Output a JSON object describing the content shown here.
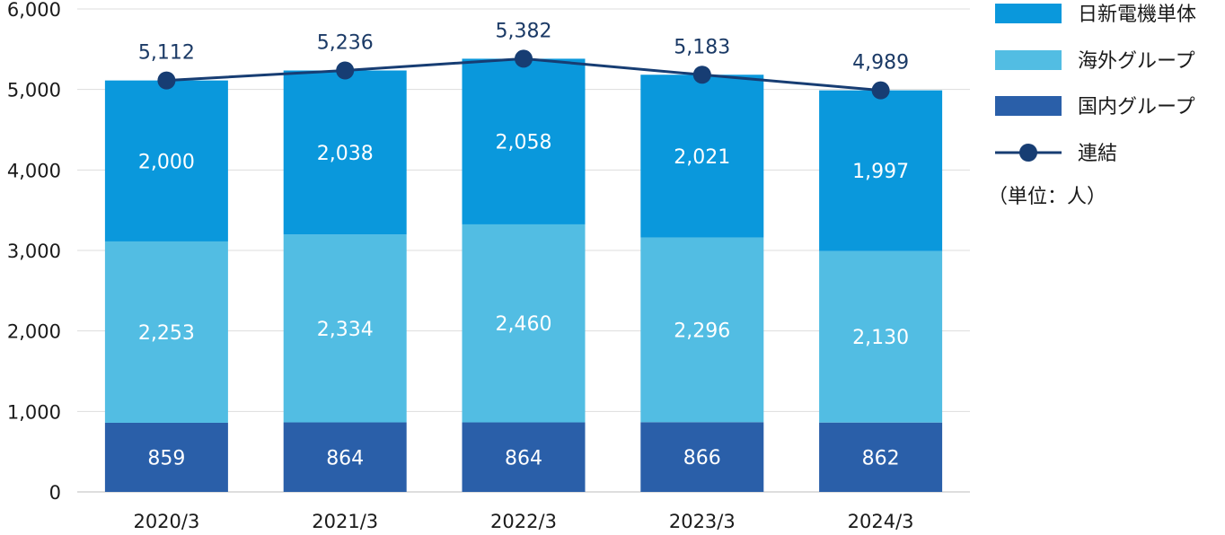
{
  "chart_data": {
    "type": "bar",
    "stacked": true,
    "categories": [
      "2020/3",
      "2021/3",
      "2022/3",
      "2023/3",
      "2024/3"
    ],
    "series": [
      {
        "name": "国内グループ",
        "values": [
          859,
          864,
          864,
          866,
          862
        ],
        "color": "#2a5fa9"
      },
      {
        "name": "海外グループ",
        "values": [
          2253,
          2334,
          2460,
          2296,
          2130
        ],
        "color": "#52bde3"
      },
      {
        "name": "日新電機単体",
        "values": [
          2000,
          2038,
          2058,
          2021,
          1997
        ],
        "color": "#0a98dc"
      }
    ],
    "line_series": {
      "name": "連結",
      "type": "line",
      "values": [
        5112,
        5236,
        5382,
        5183,
        4989
      ],
      "color": "#173d73"
    },
    "value_labels": {
      "国内グループ": [
        "859",
        "864",
        "864",
        "866",
        "862"
      ],
      "海外グループ": [
        "2,253",
        "2,334",
        "2,460",
        "2,296",
        "2,130"
      ],
      "日新電機単体": [
        "2,000",
        "2,038",
        "2,058",
        "2,021",
        "1,997"
      ],
      "連結": [
        "5,112",
        "5,236",
        "5,382",
        "5,183",
        "4,989"
      ]
    },
    "y_ticks": [
      "0",
      "1,000",
      "2,000",
      "3,000",
      "4,000",
      "5,000",
      "6,000"
    ],
    "ylim": [
      0,
      6000
    ],
    "grid": true,
    "legend": {
      "position": "right",
      "entries": [
        "日新電機単体",
        "海外グループ",
        "国内グループ",
        "連結"
      ],
      "unit_note": "（単位：人）"
    }
  }
}
